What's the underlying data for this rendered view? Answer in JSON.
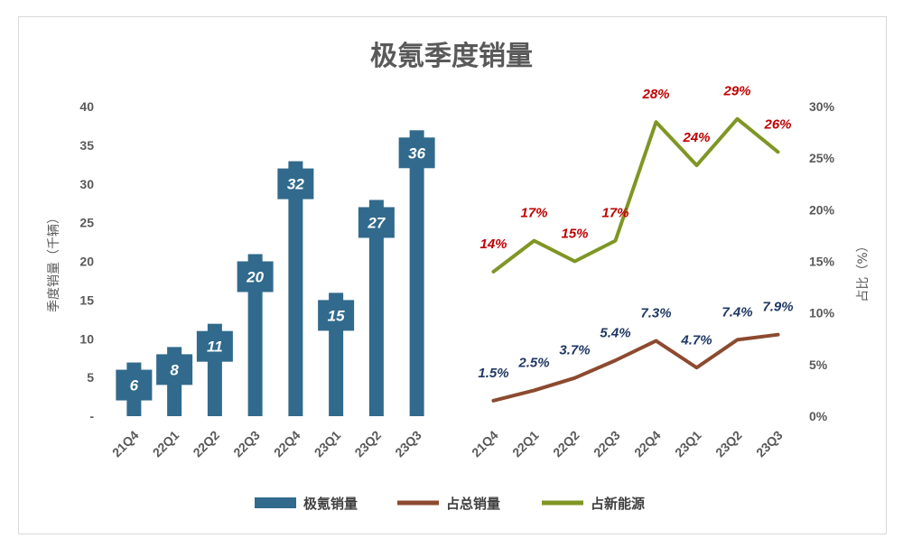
{
  "colors": {
    "bar": "#316a8c",
    "total_share": "#8c4a2f",
    "nev_share": "#7f9624",
    "nev_label": "#c00000",
    "share_label": "#1f3864"
  },
  "chart_data": [
    {
      "type": "bar",
      "title": "极氪季度销量",
      "categories": [
        "21Q4",
        "22Q1",
        "22Q2",
        "22Q3",
        "22Q4",
        "23Q1",
        "23Q2",
        "23Q3"
      ],
      "series": [
        {
          "name": "极氪销量",
          "values": [
            6,
            8,
            11,
            20,
            32,
            15,
            27,
            36
          ],
          "labels": [
            "6",
            "8",
            "11",
            "20",
            "32",
            "15",
            "27",
            "36"
          ]
        }
      ],
      "ylabel": "季度销量（千辆）",
      "ylim": [
        0,
        40
      ],
      "yticks": [
        0,
        5,
        10,
        15,
        20,
        25,
        30,
        35,
        40
      ],
      "ytick_labels": [
        "-",
        "5",
        "10",
        "15",
        "20",
        "25",
        "30",
        "35",
        "40"
      ]
    },
    {
      "type": "line",
      "categories": [
        "21Q4",
        "22Q1",
        "22Q2",
        "22Q3",
        "22Q4",
        "23Q1",
        "23Q2",
        "23Q3"
      ],
      "series": [
        {
          "name": "占总销量",
          "values": [
            1.5,
            2.5,
            3.7,
            5.4,
            7.3,
            4.7,
            7.4,
            7.9
          ],
          "labels": [
            "1.5%",
            "2.5%",
            "3.7%",
            "5.4%",
            "7.3%",
            "4.7%",
            "7.4%",
            "7.9%"
          ]
        },
        {
          "name": "占新能源",
          "values": [
            14,
            17,
            15,
            17,
            28.5,
            24.3,
            28.8,
            25.6
          ],
          "labels": [
            "14%",
            "17%",
            "15%",
            "17%",
            "28%",
            "24%",
            "29%",
            "26%"
          ]
        }
      ],
      "ylabel": "占比（%）",
      "ylim": [
        0,
        30
      ],
      "yticks": [
        0,
        5,
        10,
        15,
        20,
        25,
        30
      ],
      "ytick_labels": [
        "0%",
        "5%",
        "10%",
        "15%",
        "20%",
        "25%",
        "30%"
      ]
    }
  ],
  "legend": [
    {
      "label": "极氪销量",
      "kind": "bar"
    },
    {
      "label": "占总销量",
      "kind": "line-total"
    },
    {
      "label": "占新能源",
      "kind": "line-nev"
    }
  ]
}
